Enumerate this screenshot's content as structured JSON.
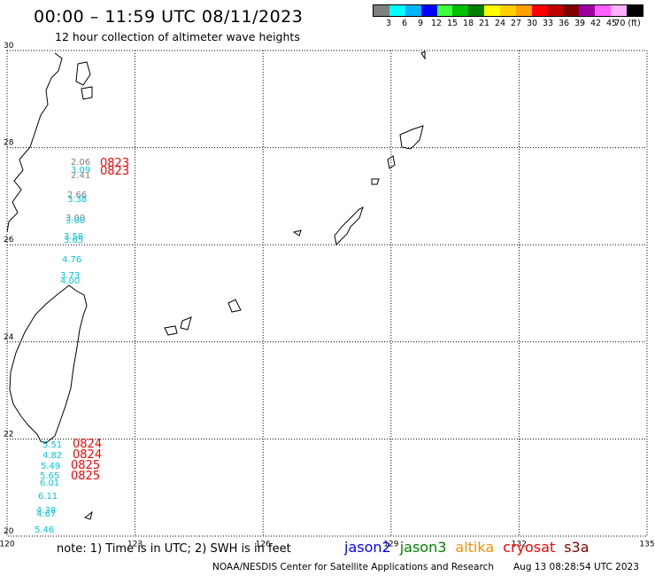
{
  "title": "00:00 – 11:59 UTC 08/11/2023",
  "subtitle": "12 hour collection of altimeter wave heights",
  "legend": {
    "colors": [
      "#808080",
      "#00ffff",
      "#00b4ff",
      "#0000ff",
      "#40ff40",
      "#00c000",
      "#008000",
      "#ffff00",
      "#ffd000",
      "#ffa000",
      "#ff0000",
      "#c00000",
      "#800000",
      "#a000a0",
      "#ff60ff",
      "#ffb0ff",
      "#000000"
    ],
    "labels": [
      "3",
      "6",
      "9",
      "12",
      "15",
      "18",
      "21",
      "24",
      "27",
      "30",
      "33",
      "36",
      "39",
      "42",
      "45",
      "70 (ft)"
    ]
  },
  "axes": {
    "lat_ticks": [
      "30",
      "28",
      "26",
      "24",
      "22",
      "20"
    ],
    "lon_ticks": [
      "120",
      "123",
      "126",
      "129",
      "132",
      "135"
    ]
  },
  "observations": [
    {
      "id": "obs-0",
      "text": "2.06",
      "color": "#808080"
    },
    {
      "id": "obs-1",
      "text": "3.09",
      "color": "#00c8dc"
    },
    {
      "id": "obs-2",
      "text": "2.41",
      "color": "#808080"
    },
    {
      "id": "obs-3",
      "text": "2.66",
      "color": "#808080"
    },
    {
      "id": "obs-4",
      "text": "3.38",
      "color": "#00c8dc"
    },
    {
      "id": "obs-5",
      "text": "3.00",
      "color": "#808080"
    },
    {
      "id": "obs-6",
      "text": "3.00",
      "color": "#00c8dc"
    },
    {
      "id": "obs-7",
      "text": "3.58",
      "color": "#00c8dc"
    },
    {
      "id": "obs-8",
      "text": "3.65",
      "color": "#00c8dc"
    },
    {
      "id": "obs-9",
      "text": "4.76",
      "color": "#00c8dc"
    },
    {
      "id": "obs-10",
      "text": "3.73",
      "color": "#00c8dc"
    },
    {
      "id": "obs-11",
      "text": "4.00",
      "color": "#00c8dc"
    },
    {
      "id": "obs-12",
      "text": "5.51",
      "color": "#00c8dc"
    },
    {
      "id": "obs-13",
      "text": "4.82",
      "color": "#00c8dc"
    },
    {
      "id": "obs-14",
      "text": "5.49",
      "color": "#00c8dc"
    },
    {
      "id": "obs-15",
      "text": "5.65",
      "color": "#00c8dc"
    },
    {
      "id": "obs-16",
      "text": "6.01",
      "color": "#00c8dc"
    },
    {
      "id": "obs-17",
      "text": "6.11",
      "color": "#00c8dc"
    },
    {
      "id": "obs-18",
      "text": "4.38",
      "color": "#00c8dc"
    },
    {
      "id": "obs-19",
      "text": "4.67",
      "color": "#00c8dc"
    },
    {
      "id": "obs-20",
      "text": "5.46",
      "color": "#00c8dc"
    }
  ],
  "times": [
    {
      "id": "time-0",
      "text": "0823",
      "color": "#ff0000"
    },
    {
      "id": "time-1",
      "text": "0823",
      "color": "#ff0000"
    },
    {
      "id": "time-2",
      "text": "0824",
      "color": "#ff0000"
    },
    {
      "id": "time-3",
      "text": "0824",
      "color": "#ff0000"
    },
    {
      "id": "time-4",
      "text": "0825",
      "color": "#ff0000"
    },
    {
      "id": "time-5",
      "text": "0825",
      "color": "#ff0000"
    }
  ],
  "footnote": "note: 1) Time is in UTC; 2) SWH is in feet",
  "satellites": [
    {
      "name": "jason2",
      "color": "#0000ff"
    },
    {
      "name": "jason3",
      "color": "#008000"
    },
    {
      "name": "altika",
      "color": "#ff8c00"
    },
    {
      "name": "cryosat",
      "color": "#ff0000"
    },
    {
      "name": "s3a",
      "color": "#800000"
    }
  ],
  "credit": "NOAA/NESDIS Center for Satellite Applications and Research",
  "timestamp": "Aug 13 08:28:54 UTC 2023"
}
